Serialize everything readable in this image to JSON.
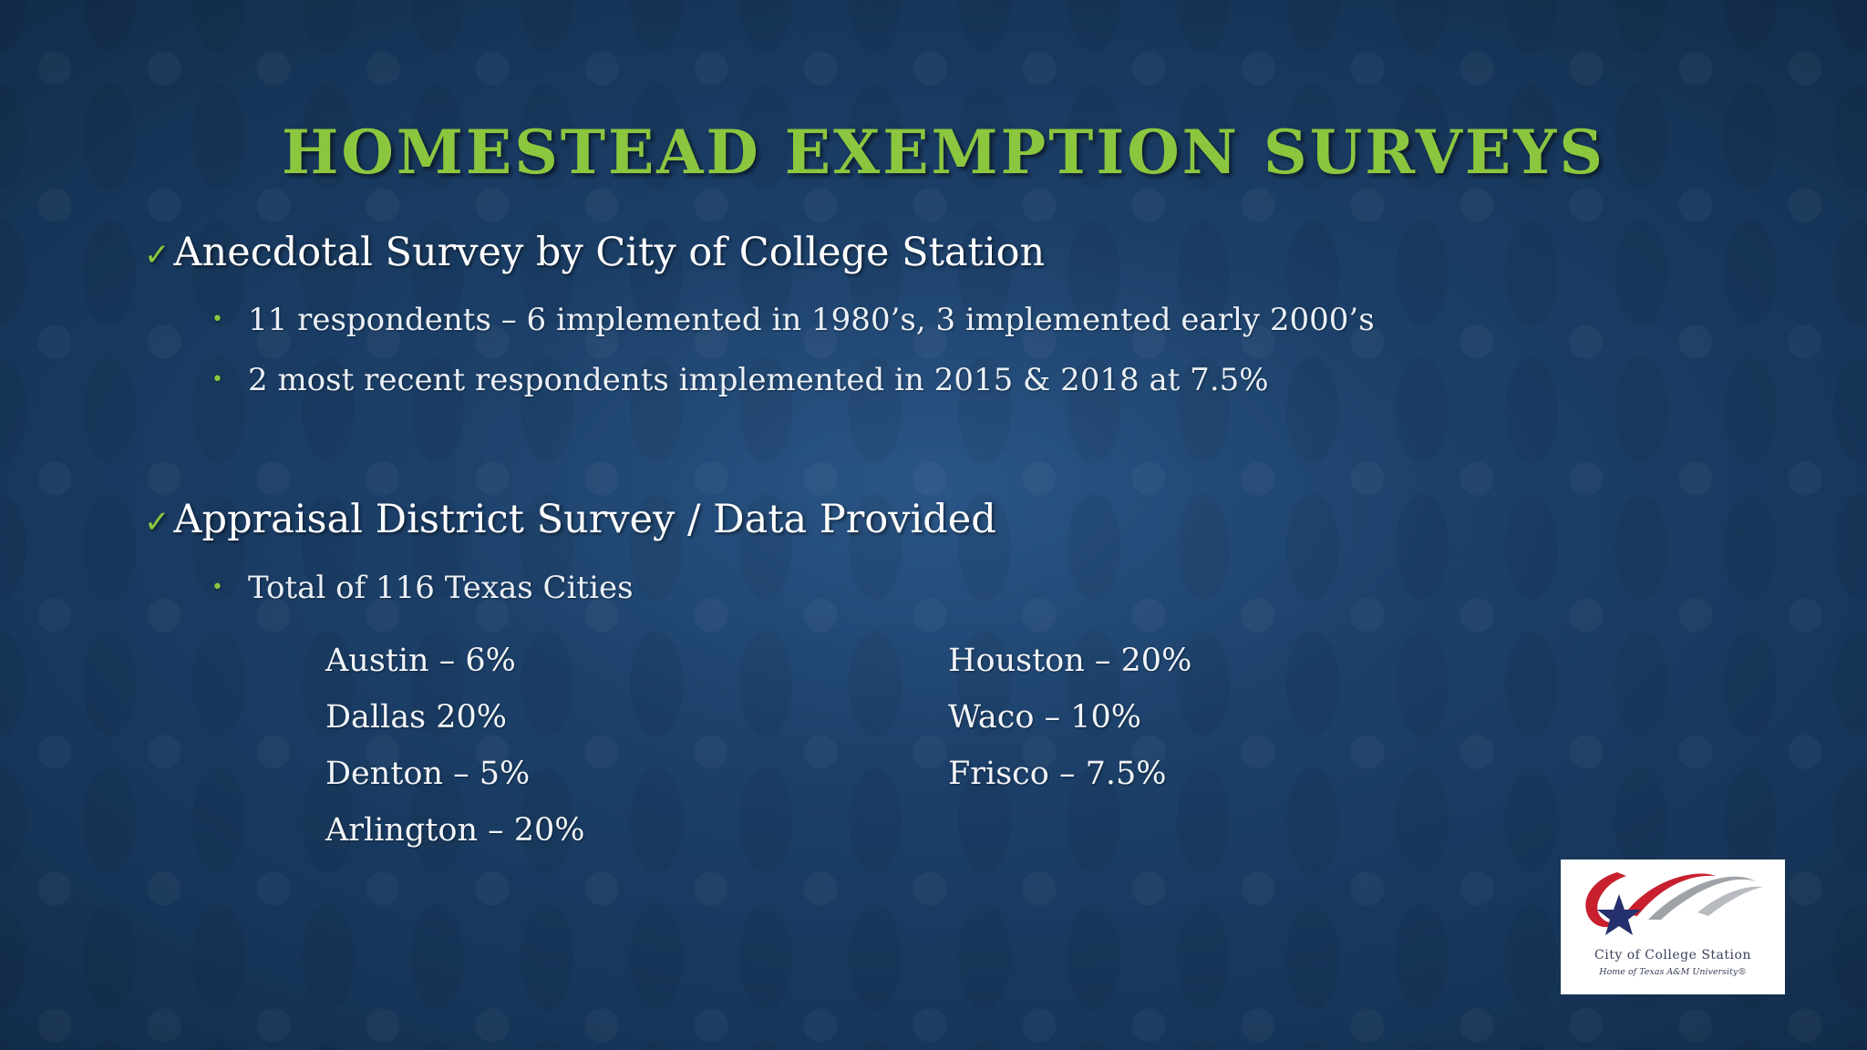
{
  "slide": {
    "title": "HOMESTEAD EXEMPTION SURVEYS",
    "check_glyph": "✓",
    "bullet_glyph": "•",
    "sections": [
      {
        "heading": "Anecdotal Survey by City of College Station",
        "bullets": [
          "11 respondents – 6 implemented in 1980’s, 3 implemented early 2000’s",
          "2 most recent respondents implemented in 2015 & 2018 at 7.5%"
        ]
      },
      {
        "heading": "Appraisal District Survey / Data Provided",
        "bullets": [
          "Total of 116 Texas Cities"
        ]
      }
    ],
    "cities_left": [
      "Austin – 6%",
      "Dallas 20%",
      "Denton – 5%",
      "Arlington – 20%"
    ],
    "cities_right": [
      "Houston – 20%",
      "Waco – 10%",
      "Frisco – 7.5%"
    ],
    "logo": {
      "line1": "City of College Station",
      "line2": "Home of Texas A&M University®"
    }
  },
  "colors": {
    "accent_green": "#8cc63f",
    "background_blue": "#1f4773",
    "text_white": "#ffffff"
  },
  "icons": {
    "check": "checkmark-icon",
    "bullet": "bullet-dot-icon"
  }
}
